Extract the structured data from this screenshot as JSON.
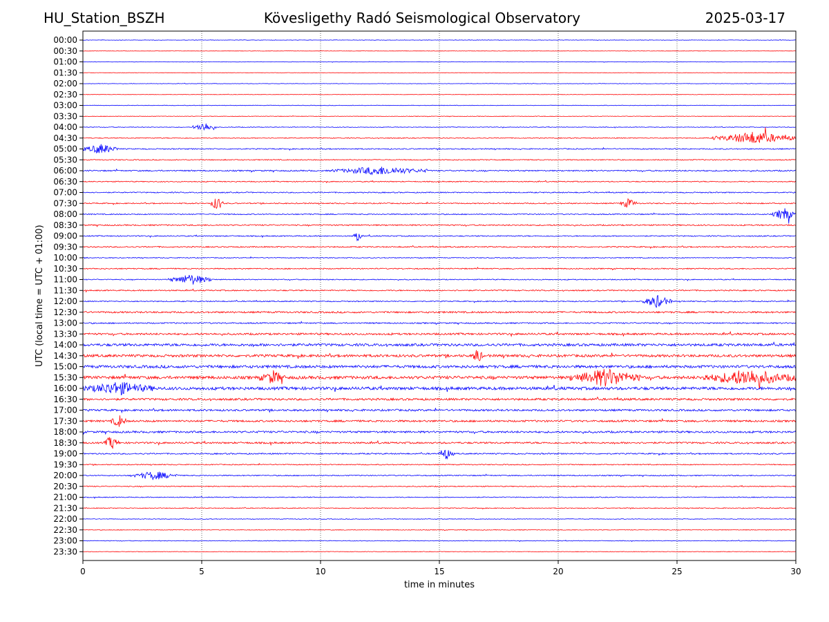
{
  "header": {
    "station": "HU_Station_BSZH",
    "observatory": "Kövesligethy Radó Seismological Observatory",
    "date": "2025-03-17"
  },
  "chart_data": {
    "type": "line",
    "title": "Kövesligethy Radó Seismological Observatory",
    "xlabel": "time in minutes",
    "ylabel": "UTC (local time = UTC + 01:00)",
    "xlim": [
      0,
      30
    ],
    "x_ticks": [
      "0",
      "5",
      "10",
      "15",
      "20",
      "25",
      "30"
    ],
    "x_tick_values": [
      0,
      5,
      10,
      15,
      20,
      25,
      30
    ],
    "rows": [
      "00:00",
      "00:30",
      "01:00",
      "01:30",
      "02:00",
      "02:30",
      "03:00",
      "03:30",
      "04:00",
      "04:30",
      "05:00",
      "05:30",
      "06:00",
      "06:30",
      "07:00",
      "07:30",
      "08:00",
      "08:30",
      "09:00",
      "09:30",
      "10:00",
      "10:30",
      "11:00",
      "11:30",
      "12:00",
      "12:30",
      "13:00",
      "13:30",
      "14:00",
      "14:30",
      "15:00",
      "15:30",
      "16:00",
      "16:30",
      "17:00",
      "17:30",
      "18:00",
      "18:30",
      "19:00",
      "19:30",
      "20:00",
      "20:30",
      "21:00",
      "21:30",
      "22:00",
      "22:30",
      "23:00",
      "23:30"
    ],
    "row_colors": [
      "#0000ff",
      "#ff0000"
    ],
    "noise_level": [
      0.1,
      0.08,
      0.1,
      0.08,
      0.1,
      0.1,
      0.12,
      0.12,
      0.15,
      0.2,
      0.25,
      0.22,
      0.3,
      0.22,
      0.25,
      0.25,
      0.25,
      0.3,
      0.25,
      0.28,
      0.2,
      0.25,
      0.22,
      0.28,
      0.25,
      0.4,
      0.3,
      0.45,
      0.6,
      0.6,
      0.65,
      0.7,
      0.7,
      0.5,
      0.45,
      0.45,
      0.45,
      0.4,
      0.3,
      0.22,
      0.25,
      0.22,
      0.2,
      0.18,
      0.15,
      0.15,
      0.15,
      0.12
    ],
    "events": [
      {
        "row": "04:00",
        "start_min": 4.6,
        "end_min": 5.6,
        "amplitude": 1.2
      },
      {
        "row": "04:30",
        "start_min": 26.5,
        "end_min": 30.0,
        "amplitude": 1.5
      },
      {
        "row": "05:00",
        "start_min": 0.0,
        "end_min": 1.5,
        "amplitude": 1.2
      },
      {
        "row": "06:00",
        "start_min": 10.5,
        "end_min": 14.5,
        "amplitude": 1.0
      },
      {
        "row": "07:30",
        "start_min": 5.4,
        "end_min": 5.9,
        "amplitude": 1.8
      },
      {
        "row": "07:30",
        "start_min": 22.6,
        "end_min": 23.3,
        "amplitude": 1.2
      },
      {
        "row": "08:00",
        "start_min": 29.0,
        "end_min": 30.0,
        "amplitude": 1.5
      },
      {
        "row": "09:00",
        "start_min": 11.4,
        "end_min": 11.7,
        "amplitude": 1.8
      },
      {
        "row": "11:00",
        "start_min": 3.6,
        "end_min": 5.5,
        "amplitude": 1.3
      },
      {
        "row": "12:00",
        "start_min": 23.5,
        "end_min": 24.8,
        "amplitude": 1.5
      },
      {
        "row": "14:30",
        "start_min": 16.4,
        "end_min": 16.8,
        "amplitude": 2.0
      },
      {
        "row": "15:30",
        "start_min": 7.5,
        "end_min": 8.5,
        "amplitude": 1.5
      },
      {
        "row": "15:30",
        "start_min": 20.5,
        "end_min": 23.5,
        "amplitude": 2.0
      },
      {
        "row": "15:30",
        "start_min": 26.0,
        "end_min": 30.0,
        "amplitude": 1.8
      },
      {
        "row": "16:00",
        "start_min": 0.0,
        "end_min": 3.0,
        "amplitude": 1.4
      },
      {
        "row": "17:30",
        "start_min": 1.2,
        "end_min": 1.8,
        "amplitude": 1.5
      },
      {
        "row": "18:30",
        "start_min": 0.9,
        "end_min": 1.5,
        "amplitude": 1.6
      },
      {
        "row": "19:00",
        "start_min": 15.0,
        "end_min": 15.6,
        "amplitude": 1.2
      },
      {
        "row": "20:00",
        "start_min": 2.0,
        "end_min": 4.0,
        "amplitude": 1.0
      }
    ]
  }
}
